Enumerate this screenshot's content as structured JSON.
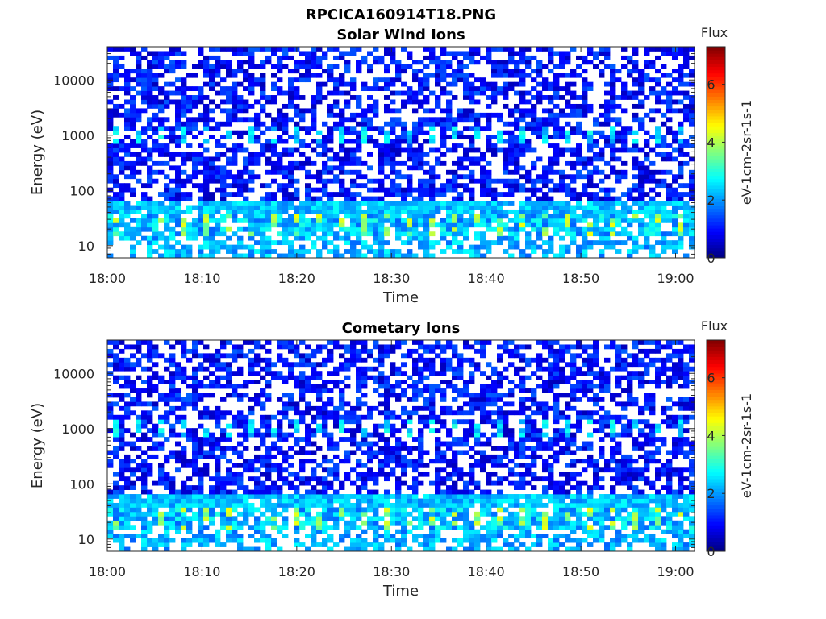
{
  "figure": {
    "title": "RPCICA160914T18.PNG"
  },
  "chart_data": [
    {
      "type": "heatmap",
      "title": "Solar Wind Ions",
      "xlabel": "Time",
      "ylabel": "Energy (eV)",
      "x_ticks": [
        "18:00",
        "18:10",
        "18:20",
        "18:30",
        "18:40",
        "18:50",
        "19:00"
      ],
      "x_range": [
        "18:00",
        "19:02"
      ],
      "y_scale": "log",
      "y_ticks": [
        10,
        100,
        1000,
        10000
      ],
      "y_range": [
        6,
        40000
      ],
      "colorbar": {
        "title": "Flux",
        "label": "eV-1cm-2sr-1s-1",
        "range": [
          0,
          7.3
        ],
        "ticks": [
          0,
          2,
          4,
          6
        ],
        "colormap": "jet"
      },
      "features": [
        {
          "energy_band_eV": [
            15,
            35
          ],
          "typical_flux": [
            1.5,
            3.5
          ]
        },
        {
          "energy_band_eV": [
            35,
            70
          ],
          "typical_flux": [
            1.8,
            2.8
          ]
        },
        {
          "energy_band_eV": [
            700,
            1400
          ],
          "typical_flux": [
            2,
            3
          ]
        },
        {
          "energy_band_eV": [
            70,
            40000
          ],
          "typical_flux": [
            0.5,
            1.5
          ]
        }
      ]
    },
    {
      "type": "heatmap",
      "title": "Cometary Ions",
      "xlabel": "Time",
      "ylabel": "Energy (eV)",
      "x_ticks": [
        "18:00",
        "18:10",
        "18:20",
        "18:30",
        "18:40",
        "18:50",
        "19:00"
      ],
      "x_range": [
        "18:00",
        "19:02"
      ],
      "y_scale": "log",
      "y_ticks": [
        10,
        100,
        1000,
        10000
      ],
      "y_range": [
        6,
        40000
      ],
      "colorbar": {
        "title": "Flux",
        "label": "eV-1cm-2sr-1s-1",
        "range": [
          0,
          7.3
        ],
        "ticks": [
          0,
          2,
          4,
          6
        ],
        "colormap": "jet"
      },
      "features": [
        {
          "energy_band_eV": [
            15,
            35
          ],
          "typical_flux": [
            1.5,
            3.5
          ]
        },
        {
          "energy_band_eV": [
            35,
            70
          ],
          "typical_flux": [
            1.8,
            2.8
          ]
        },
        {
          "energy_band_eV": [
            700,
            1400
          ],
          "typical_flux": [
            2,
            3
          ]
        },
        {
          "energy_band_eV": [
            70,
            40000
          ],
          "typical_flux": [
            0.5,
            1.5
          ]
        }
      ]
    }
  ]
}
